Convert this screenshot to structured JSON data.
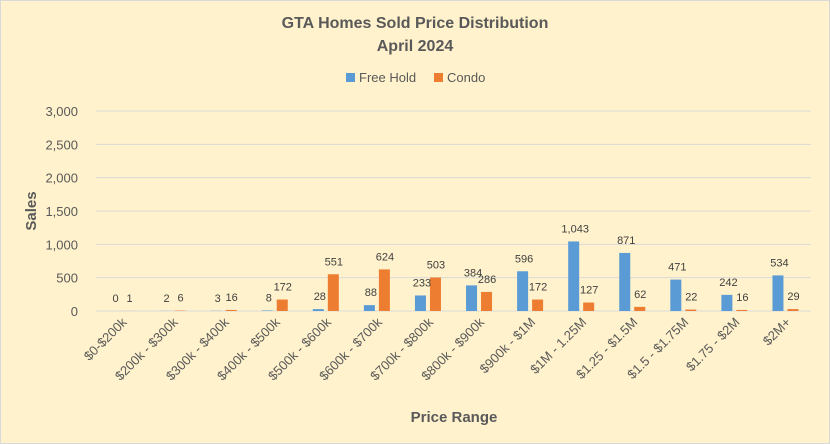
{
  "chart_data": {
    "type": "bar",
    "title": "GTA Homes Sold Price Distribution",
    "subtitle": "April 2024",
    "xlabel": "Price Range",
    "ylabel": "Sales",
    "ylim": [
      0,
      3000
    ],
    "yticks": [
      0,
      500,
      1000,
      1500,
      2000,
      2500,
      3000
    ],
    "ytick_labels": [
      "0",
      "500",
      "1,000",
      "1,500",
      "2,000",
      "2,500",
      "3,000"
    ],
    "grid": true,
    "legend_position": "top",
    "categories": [
      "$0-$200k",
      "$200k - $300k",
      "$300k - $400k",
      "$400k - $500k",
      "$500k - $600k",
      "$600k - $700k",
      "$700k - $800k",
      "$800k - $900k",
      "$900k - $1M",
      "$1M - 1.25M",
      "$1.25 - $1.5M",
      "$1.5 - $1.75M",
      "$1.75 - $2M",
      "$2M+"
    ],
    "series": [
      {
        "name": "Free Hold",
        "color": "#5B9BD5",
        "values": [
          0,
          2,
          3,
          8,
          28,
          88,
          233,
          384,
          596,
          1043,
          871,
          471,
          242,
          534
        ],
        "labels": [
          "0",
          "2",
          "3",
          "8",
          "28",
          "88",
          "233",
          "384",
          "596",
          "1,043",
          "871",
          "471",
          "242",
          "534"
        ]
      },
      {
        "name": "Condo",
        "color": "#ED7D31",
        "values": [
          1,
          6,
          16,
          172,
          551,
          624,
          503,
          286,
          172,
          127,
          62,
          22,
          16,
          29
        ],
        "labels": [
          "1",
          "6",
          "16",
          "172",
          "551",
          "624",
          "503",
          "286",
          "172",
          "127",
          "62",
          "22",
          "16",
          "29"
        ]
      }
    ]
  }
}
